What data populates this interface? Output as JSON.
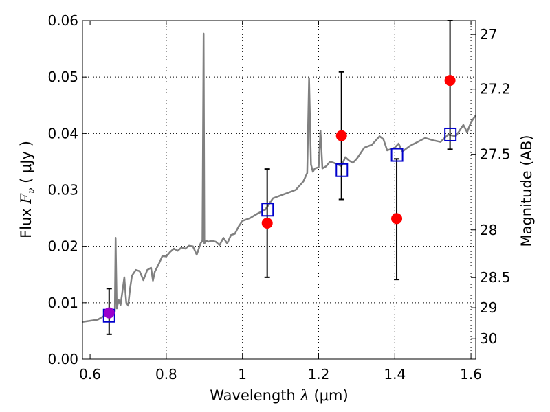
{
  "chart_data": {
    "type": "line",
    "xlabel_text": "Wavelength  ",
    "xlabel_symbol": "λ",
    "xlabel_unit": " (μm)",
    "ylabel_text": "Flux  ",
    "ylabel_symbol_main": "F",
    "ylabel_symbol_sub": "ν",
    "ylabel_unit": "  ( μJy )",
    "y2label": "Magnitude (AB)",
    "xlim": [
      0.58,
      1.6125
    ],
    "ylim": [
      0.0,
      0.06
    ],
    "grid": true,
    "x_ticks": [
      0.6,
      0.8,
      1.0,
      1.2,
      1.4,
      1.6
    ],
    "x_tick_labels": [
      "0.6",
      "0.8",
      "1",
      "1.2",
      "1.4",
      "1.6"
    ],
    "y_ticks": [
      0.0,
      0.01,
      0.02,
      0.03,
      0.04,
      0.05,
      0.06
    ],
    "y_tick_labels": [
      "0.00",
      "0.01",
      "0.02",
      "0.03",
      "0.04",
      "0.05",
      "0.06"
    ],
    "mag_ticks": [
      27,
      27.2,
      27.5,
      28,
      28.5,
      29,
      30
    ],
    "mag_tick_labels": [
      "27",
      "27.2",
      "27.5",
      "28",
      "28.5",
      "29",
      "30"
    ],
    "colors": {
      "model_line": "#808080",
      "observed_points": "#ff0000",
      "model_squares": "#0000cc",
      "overlap_point": "#9900cc",
      "error_bars": "#000000"
    },
    "series": [
      {
        "name": "model spectrum",
        "kind": "line",
        "x": [
          0.58,
          0.6,
          0.62,
          0.63,
          0.64,
          0.65,
          0.655,
          0.66,
          0.665,
          0.667,
          0.67,
          0.675,
          0.68,
          0.69,
          0.695,
          0.7,
          0.705,
          0.71,
          0.72,
          0.73,
          0.74,
          0.75,
          0.76,
          0.765,
          0.77,
          0.78,
          0.79,
          0.8,
          0.81,
          0.82,
          0.83,
          0.84,
          0.85,
          0.86,
          0.87,
          0.88,
          0.89,
          0.895,
          0.898,
          0.9,
          0.905,
          0.91,
          0.92,
          0.93,
          0.94,
          0.95,
          0.96,
          0.97,
          0.98,
          0.99,
          1.0,
          1.02,
          1.04,
          1.06,
          1.07,
          1.08,
          1.1,
          1.12,
          1.14,
          1.16,
          1.17,
          1.175,
          1.18,
          1.185,
          1.19,
          1.2,
          1.205,
          1.21,
          1.22,
          1.23,
          1.24,
          1.25,
          1.26,
          1.27,
          1.28,
          1.29,
          1.3,
          1.32,
          1.34,
          1.36,
          1.37,
          1.38,
          1.4,
          1.41,
          1.42,
          1.44,
          1.46,
          1.48,
          1.5,
          1.52,
          1.54,
          1.56,
          1.57,
          1.58,
          1.59,
          1.6,
          1.6125
        ],
        "y": [
          0.0066,
          0.0068,
          0.007,
          0.0074,
          0.0078,
          0.0079,
          0.0082,
          0.0081,
          0.0085,
          0.0215,
          0.009,
          0.0105,
          0.0096,
          0.0145,
          0.01,
          0.0095,
          0.0125,
          0.0148,
          0.0158,
          0.0156,
          0.014,
          0.0158,
          0.0162,
          0.0139,
          0.0155,
          0.0168,
          0.0183,
          0.0182,
          0.019,
          0.0196,
          0.0192,
          0.0198,
          0.0196,
          0.0201,
          0.02,
          0.0185,
          0.0205,
          0.021,
          0.0577,
          0.0205,
          0.021,
          0.0208,
          0.021,
          0.0208,
          0.0202,
          0.0215,
          0.0205,
          0.022,
          0.0222,
          0.0235,
          0.0245,
          0.025,
          0.0258,
          0.0265,
          0.0275,
          0.0285,
          0.029,
          0.0295,
          0.03,
          0.0315,
          0.033,
          0.0498,
          0.0345,
          0.0332,
          0.0338,
          0.034,
          0.0405,
          0.0338,
          0.0342,
          0.035,
          0.0348,
          0.0345,
          0.0342,
          0.0358,
          0.0352,
          0.0348,
          0.0355,
          0.0375,
          0.038,
          0.0395,
          0.039,
          0.037,
          0.0375,
          0.0382,
          0.0368,
          0.0378,
          0.0385,
          0.0392,
          0.0388,
          0.0385,
          0.0398,
          0.0395,
          0.0405,
          0.0415,
          0.0402,
          0.042,
          0.0432
        ]
      },
      {
        "name": "observed photometry",
        "kind": "points_with_error_bars",
        "x": [
          0.65,
          1.065,
          1.26,
          1.405,
          1.545
        ],
        "y": [
          0.0082,
          0.0241,
          0.0396,
          0.0249,
          0.0494
        ],
        "err_low": [
          0.0044,
          0.0145,
          0.0283,
          0.0141,
          0.0372
        ],
        "err_high": [
          0.0125,
          0.0337,
          0.0509,
          0.0355,
          0.06
        ]
      },
      {
        "name": "model synthetic photometry",
        "kind": "open_squares",
        "x": [
          0.65,
          1.066,
          1.261,
          1.406,
          1.546
        ],
        "y": [
          0.0077,
          0.0265,
          0.0335,
          0.0362,
          0.0398
        ]
      }
    ]
  }
}
